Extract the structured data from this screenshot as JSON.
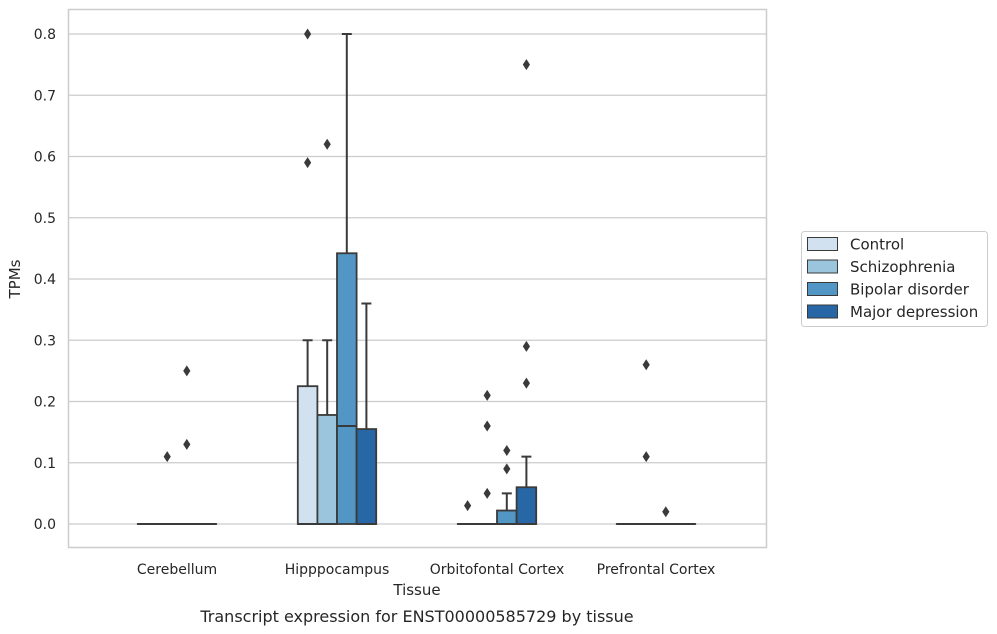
{
  "caption": "Transcript expression for ENST00000585729 by tissue",
  "chart_data": {
    "type": "box",
    "xlabel": "Tissue",
    "ylabel": "TPMs",
    "ylim": [
      -0.04,
      0.84
    ],
    "yticks": [
      0.0,
      0.1,
      0.2,
      0.3,
      0.4,
      0.5,
      0.6,
      0.7,
      0.8
    ],
    "ytick_labels": [
      "0.0",
      "0.1",
      "0.2",
      "0.3",
      "0.4",
      "0.5",
      "0.6",
      "0.7",
      "0.8"
    ],
    "grid": "horizontal",
    "legend_position": "right",
    "categories": [
      "Cerebellum",
      "Hipppocampus",
      "Orbitofontal Cortex",
      "Prefrontal Cortex"
    ],
    "series": [
      {
        "name": "Control",
        "color": "#d1e1ef",
        "boxes": [
          {
            "q1": 0,
            "median": 0,
            "q3": 0,
            "whisker_low": 0,
            "whisker_high": 0,
            "outliers": []
          },
          {
            "q1": 0,
            "median": 0,
            "q3": 0.225,
            "whisker_low": 0,
            "whisker_high": 0.3,
            "outliers": [
              0.59,
              0.8
            ]
          },
          {
            "q1": 0,
            "median": 0,
            "q3": 0,
            "whisker_low": 0,
            "whisker_high": 0,
            "outliers": [
              0.03
            ]
          },
          {
            "q1": 0,
            "median": 0,
            "q3": 0,
            "whisker_low": 0,
            "whisker_high": 0,
            "outliers": []
          }
        ]
      },
      {
        "name": "Schizophrenia",
        "color": "#9ac5dc",
        "boxes": [
          {
            "q1": 0,
            "median": 0,
            "q3": 0,
            "whisker_low": 0,
            "whisker_high": 0,
            "outliers": [
              0.11
            ]
          },
          {
            "q1": 0,
            "median": 0,
            "q3": 0.178,
            "whisker_low": 0,
            "whisker_high": 0.3,
            "outliers": [
              0.62
            ]
          },
          {
            "q1": 0,
            "median": 0,
            "q3": 0,
            "whisker_low": 0,
            "whisker_high": 0,
            "outliers": [
              0.05,
              0.16,
              0.21
            ]
          },
          {
            "q1": 0,
            "median": 0,
            "q3": 0,
            "whisker_low": 0,
            "whisker_high": 0,
            "outliers": [
              0.11,
              0.26
            ]
          }
        ]
      },
      {
        "name": "Bipolar disorder",
        "color": "#5196c4",
        "boxes": [
          {
            "q1": 0,
            "median": 0,
            "q3": 0,
            "whisker_low": 0,
            "whisker_high": 0,
            "outliers": [
              0.13,
              0.25
            ]
          },
          {
            "q1": 0,
            "median": 0.16,
            "q3": 0.442,
            "whisker_low": 0,
            "whisker_high": 0.8,
            "outliers": []
          },
          {
            "q1": 0,
            "median": 0,
            "q3": 0.022,
            "whisker_low": 0,
            "whisker_high": 0.05,
            "outliers": [
              0.09,
              0.12
            ]
          },
          {
            "q1": 0,
            "median": 0,
            "q3": 0,
            "whisker_low": 0,
            "whisker_high": 0,
            "outliers": [
              0.02
            ]
          }
        ]
      },
      {
        "name": "Major depression",
        "color": "#2767a6",
        "boxes": [
          {
            "q1": 0,
            "median": 0,
            "q3": 0,
            "whisker_low": 0,
            "whisker_high": 0,
            "outliers": []
          },
          {
            "q1": 0,
            "median": 0,
            "q3": 0.155,
            "whisker_low": 0,
            "whisker_high": 0.36,
            "outliers": []
          },
          {
            "q1": 0,
            "median": 0,
            "q3": 0.06,
            "whisker_low": 0,
            "whisker_high": 0.11,
            "outliers": [
              0.23,
              0.29,
              0.75
            ]
          },
          {
            "q1": 0,
            "median": 0,
            "q3": 0,
            "whisker_low": 0,
            "whisker_high": 0,
            "outliers": []
          }
        ]
      }
    ]
  }
}
